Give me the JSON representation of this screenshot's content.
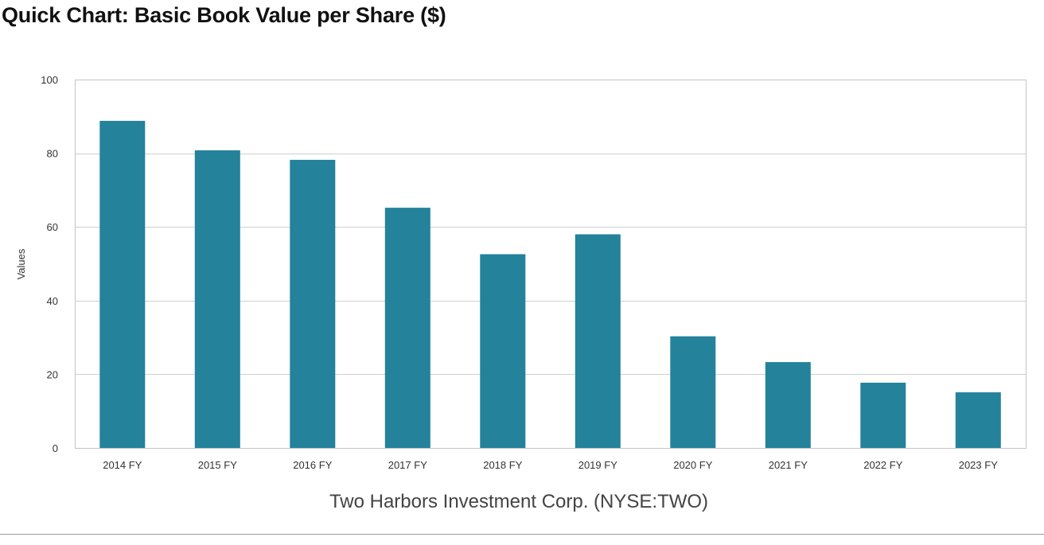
{
  "page": {
    "title": "Quick Chart: Basic Book Value per Share ($)"
  },
  "chart_data": {
    "type": "bar",
    "categories": [
      "2014 FY",
      "2015 FY",
      "2016 FY",
      "2017 FY",
      "2018 FY",
      "2019 FY",
      "2020 FY",
      "2021 FY",
      "2022 FY",
      "2023 FY"
    ],
    "series": [
      {
        "values": [
          88.8,
          80.8,
          78.2,
          65.2,
          52.6,
          58.0,
          30.3,
          23.3,
          17.7,
          15.1
        ]
      }
    ],
    "xlabel": "Two Harbors Investment Corp. (NYSE:TWO)",
    "ylabel": "Values",
    "ylim": [
      0,
      100
    ],
    "yticks": [
      0,
      20,
      40,
      60,
      80,
      100
    ],
    "grid": true,
    "legend": "none",
    "bar_color": "#24829b"
  }
}
